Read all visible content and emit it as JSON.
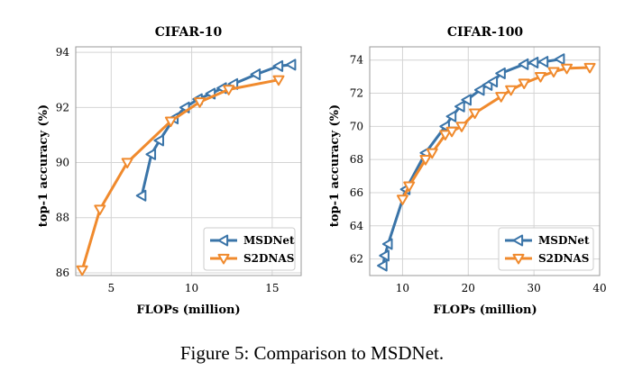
{
  "caption": "Figure 5: Comparison to MSDNet.",
  "colors": {
    "msdnet": "#3a74a8",
    "s2dnas": "#f08a2d",
    "grid": "#d4d4d4",
    "frame": "#999999"
  },
  "chart_data": [
    {
      "type": "line",
      "title": "CIFAR-10",
      "xlabel": "FLOPs (million)",
      "ylabel": "top-1 accuracy (%)",
      "xlim": [
        2.8,
        16.8
      ],
      "ylim": [
        85.9,
        94.2
      ],
      "xticks": [
        5,
        10,
        15
      ],
      "yticks": [
        86,
        88,
        90,
        92,
        94
      ],
      "legend": "bottom-right",
      "series": [
        {
          "name": "MSDNet",
          "marker": "triangle-left",
          "color": "#3a74a8",
          "x": [
            6.9,
            7.5,
            8.0,
            8.9,
            9.6,
            10.4,
            11.2,
            11.9,
            12.6,
            14.0,
            15.4,
            16.2
          ],
          "y": [
            88.8,
            90.3,
            90.8,
            91.6,
            92.0,
            92.3,
            92.5,
            92.7,
            92.85,
            93.2,
            93.5,
            93.55
          ]
        },
        {
          "name": "S2DNAS",
          "marker": "triangle-down",
          "color": "#f08a2d",
          "x": [
            3.2,
            4.3,
            6.0,
            8.7,
            10.5,
            12.3,
            15.4
          ],
          "y": [
            86.1,
            88.3,
            90.0,
            91.5,
            92.2,
            92.65,
            93.0
          ]
        }
      ]
    },
    {
      "type": "line",
      "title": "CIFAR-100",
      "xlabel": "FLOPs (million)",
      "ylabel": "top-1 accuracy (%)",
      "xlim": [
        5,
        40
      ],
      "ylim": [
        61,
        74.8
      ],
      "xticks": [
        10,
        20,
        30,
        40
      ],
      "yticks": [
        62,
        64,
        66,
        68,
        70,
        72,
        74
      ],
      "legend": "bottom-right",
      "series": [
        {
          "name": "MSDNet",
          "marker": "triangle-left",
          "color": "#3a74a8",
          "x": [
            7.0,
            7.3,
            7.8,
            10.5,
            13.5,
            16.5,
            17.5,
            18.8,
            19.8,
            21.8,
            23.0,
            23.8,
            25.0,
            28.5,
            30.0,
            31.5,
            34.0
          ],
          "y": [
            61.6,
            62.2,
            62.9,
            66.2,
            68.4,
            70.0,
            70.6,
            71.2,
            71.6,
            72.2,
            72.5,
            72.7,
            73.2,
            73.75,
            73.85,
            73.9,
            74.05
          ]
        },
        {
          "name": "S2DNAS",
          "marker": "triangle-down",
          "color": "#f08a2d",
          "x": [
            10.0,
            11.0,
            13.5,
            14.5,
            16.5,
            17.5,
            19.0,
            21.0,
            25.0,
            26.5,
            28.5,
            31.0,
            33.0,
            35.0,
            38.5
          ],
          "y": [
            65.6,
            66.4,
            68.0,
            68.4,
            69.5,
            69.7,
            70.0,
            70.8,
            71.8,
            72.2,
            72.6,
            73.0,
            73.3,
            73.5,
            73.55
          ]
        }
      ]
    }
  ]
}
